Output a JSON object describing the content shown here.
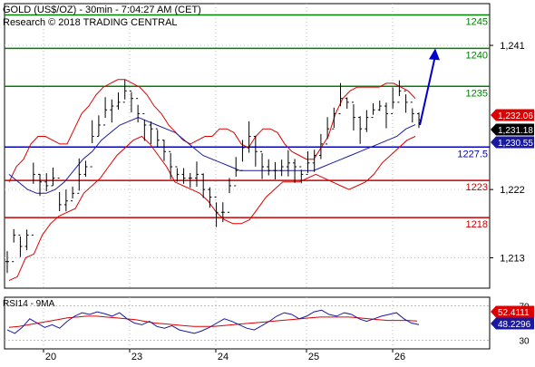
{
  "header": {
    "instrument": "GOLD (US$/OZ) - 30min - 7:04:27 AM (CET)",
    "copyright": "Research © 2018 TRADING CENTRAL"
  },
  "rsi_panel": {
    "title": "RSI14 - 9MA",
    "axis_ticks": [
      70,
      30
    ],
    "badges": [
      {
        "text": "52.4111",
        "value": 52.4111,
        "color": "#dd0000"
      },
      {
        "text": "48.2296",
        "value": 48.2296,
        "color": "#1a1aa0"
      }
    ]
  },
  "price_badges": [
    {
      "text": "1,232.06",
      "value": 1232.06,
      "color": "#dd0000"
    },
    {
      "text": "1,231.18",
      "value": 1231.18,
      "color": "#000000"
    },
    {
      "text": "1,230.55",
      "value": 1230.55,
      "color": "#1a1aa0"
    }
  ],
  "colors": {
    "resistance": "#008000",
    "pivot": "#0000cc",
    "support": "#cc0000",
    "bollinger": "#dd0000",
    "moving_average": "#1a1aa0",
    "candles": "#000000",
    "arrow": "#0000cc",
    "rsi_line": "#1a1aa0",
    "rsi_ma": "#dd0000"
  },
  "chart_data": {
    "type": "line",
    "title": "GOLD (US$/OZ) - 30min - 7:04:27 AM (CET)",
    "x_tick_labels": [
      "20",
      "23",
      "24",
      "25",
      "26"
    ],
    "y_tick_labels": [
      "1,241",
      "1,222",
      "1,213"
    ],
    "ylim": [
      1209,
      1246.5
    ],
    "grid": "dotted",
    "horizontal_levels": [
      {
        "label": "1245",
        "value": 1245,
        "kind": "resistance"
      },
      {
        "label": "1240",
        "value": 1240.6,
        "kind": "resistance"
      },
      {
        "label": "1235",
        "value": 1235.6,
        "kind": "resistance"
      },
      {
        "label": "1227.5",
        "value": 1227.6,
        "kind": "pivot"
      },
      {
        "label": "1223",
        "value": 1223.2,
        "kind": "support"
      },
      {
        "label": "1218",
        "value": 1218.3,
        "kind": "support"
      }
    ],
    "price_series": [
      1212.5,
      1216.0,
      1214.5,
      1216.0,
      1224.0,
      1223.0,
      1222.5,
      1223.5,
      1220.0,
      1220.5,
      1221.5,
      1224.0,
      1225.0,
      1229.0,
      1230.5,
      1232.5,
      1233.0,
      1233.5,
      1235.0,
      1234.0,
      1232.0,
      1230.5,
      1230.0,
      1228.5,
      1227.0,
      1225.0,
      1224.0,
      1223.5,
      1223.5,
      1224.0,
      1222.0,
      1221.0,
      1219.0,
      1219.0,
      1222.5,
      1224.5,
      1227.5,
      1229.0,
      1227.0,
      1225.0,
      1224.5,
      1224.5,
      1225.0,
      1225.5,
      1225.0,
      1224.0,
      1225.5,
      1226.5,
      1228.0,
      1230.0,
      1232.0,
      1234.0,
      1233.5,
      1231.5,
      1230.0,
      1231.5,
      1232.5,
      1233.0,
      1232.0,
      1233.5,
      1235.0,
      1233.5,
      1232.0,
      1231.18
    ],
    "bollinger_upper": [
      1223.0,
      1225.0,
      1226.0,
      1228.0,
      1229.0,
      1229.0,
      1228.5,
      1228.0,
      1228.0,
      1230.0,
      1232.0,
      1233.0,
      1234.5,
      1235.5,
      1236.0,
      1236.5,
      1236.5,
      1236.0,
      1235.5,
      1234.5,
      1233.0,
      1232.0,
      1230.5,
      1229.5,
      1228.5,
      1228.0,
      1228.5,
      1229.0,
      1229.0,
      1230.0,
      1230.0,
      1229.5,
      1228.0,
      1227.5,
      1229.0,
      1230.0,
      1230.0,
      1229.5,
      1228.0,
      1227.0,
      1226.5,
      1226.0,
      1226.0,
      1227.5,
      1229.0,
      1232.0,
      1234.0,
      1235.0,
      1235.5,
      1235.5,
      1235.5,
      1235.5,
      1236.0,
      1236.0,
      1235.5,
      1235.0,
      1234.0
    ],
    "bollinger_lower": [
      1210.0,
      1210.5,
      1213.0,
      1213.5,
      1216.0,
      1217.5,
      1218.5,
      1219.0,
      1219.5,
      1221.5,
      1222.5,
      1223.5,
      1225.0,
      1226.5,
      1227.5,
      1228.5,
      1229.0,
      1228.0,
      1226.5,
      1225.0,
      1223.0,
      1222.5,
      1222.0,
      1221.5,
      1220.5,
      1219.0,
      1218.0,
      1217.5,
      1217.5,
      1218.0,
      1219.5,
      1221.0,
      1222.0,
      1223.0,
      1223.0,
      1223.0,
      1223.5,
      1224.0,
      1223.5,
      1223.0,
      1222.5,
      1222.0,
      1222.5,
      1223.0,
      1224.0,
      1225.5,
      1226.5,
      1227.5,
      1228.5,
      1229.0
    ],
    "moving_average": [
      1224.0,
      1223.0,
      1222.0,
      1221.5,
      1221.5,
      1222.0,
      1223.0,
      1224.5,
      1226.0,
      1227.0,
      1228.5,
      1229.5,
      1230.5,
      1231.0,
      1231.5,
      1231.0,
      1230.5,
      1230.0,
      1229.5,
      1228.5,
      1227.5,
      1226.5,
      1226.0,
      1225.5,
      1225.0,
      1224.5,
      1224.5,
      1224.5,
      1224.5,
      1224.5,
      1224.5,
      1224.5,
      1224.5,
      1224.5,
      1225.0,
      1225.5,
      1226.0,
      1226.5,
      1227.0,
      1227.5,
      1228.0,
      1228.5,
      1229.0,
      1230.0,
      1230.55
    ],
    "projection_arrow": {
      "from": 1230.5,
      "to": 1240.6
    },
    "rsi_ylim": [
      20,
      80
    ],
    "rsi_series": [
      42,
      38,
      45,
      55,
      50,
      45,
      48,
      44,
      52,
      58,
      62,
      60,
      63,
      61,
      58,
      62,
      55,
      50,
      48,
      52,
      46,
      44,
      47,
      42,
      40,
      38,
      41,
      45,
      50,
      55,
      52,
      48,
      44,
      42,
      47,
      52,
      58,
      62,
      60,
      55,
      58,
      63,
      65,
      60,
      58,
      62,
      60,
      55,
      52,
      55,
      58,
      60,
      62,
      55,
      50,
      48.2296
    ],
    "rsi_ma": [
      45,
      46,
      48,
      50,
      52,
      54,
      56,
      57,
      58,
      58,
      57,
      56,
      55,
      54,
      52,
      50,
      49,
      48,
      47,
      46,
      46,
      46,
      47,
      48,
      49,
      50,
      51,
      52,
      53,
      54,
      55,
      56,
      57,
      57,
      57,
      57,
      56,
      55,
      54,
      53,
      53,
      53,
      52.4111
    ]
  }
}
